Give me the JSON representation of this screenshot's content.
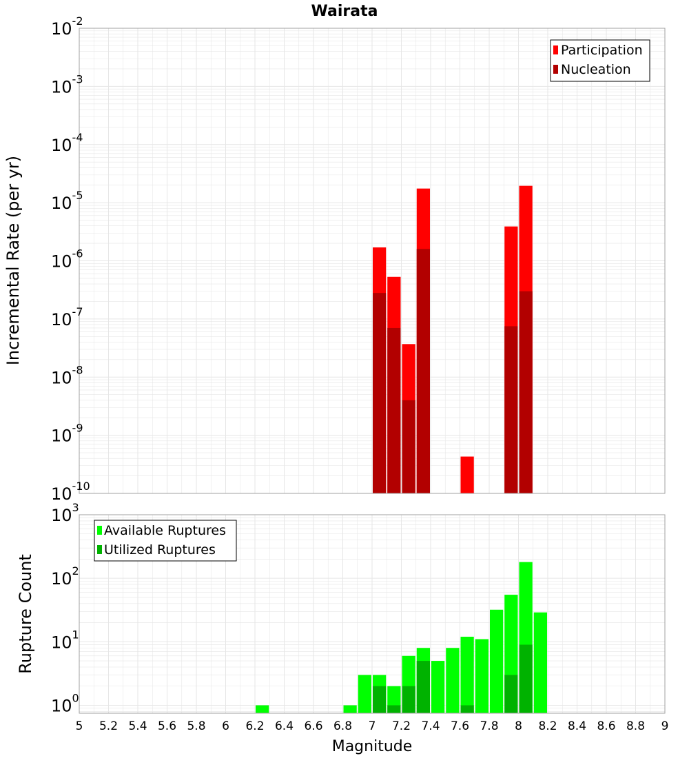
{
  "title": "Wairata",
  "xlabel": "Magnitude",
  "x_ticks": [
    "5",
    "5.2",
    "5.4",
    "5.6",
    "5.8",
    "6",
    "6.2",
    "6.4",
    "6.6",
    "6.8",
    "7",
    "7.2",
    "7.4",
    "7.6",
    "7.8",
    "8",
    "8.2",
    "8.4",
    "8.6",
    "8.8",
    "9"
  ],
  "colors": {
    "participation": "#ff0000",
    "nucleation": "#b20000",
    "available": "#00ff00",
    "utilized": "#00b200",
    "grid": "#e6e6e6",
    "frame": "#a0a0a0"
  },
  "chart_data": [
    {
      "type": "bar",
      "title": "Wairata",
      "xlabel": "Magnitude",
      "ylabel": "Incremental Rate (per yr)",
      "xlim": [
        5,
        9
      ],
      "ylim": [
        1e-10,
        0.01
      ],
      "yscale": "log",
      "grid": true,
      "legend": "top-right",
      "y_ticks": [
        {
          "base": "10",
          "exp": "-10"
        },
        {
          "base": "10",
          "exp": "-9"
        },
        {
          "base": "10",
          "exp": "-8"
        },
        {
          "base": "10",
          "exp": "-7"
        },
        {
          "base": "10",
          "exp": "-6"
        },
        {
          "base": "10",
          "exp": "-5"
        },
        {
          "base": "10",
          "exp": "-4"
        },
        {
          "base": "10",
          "exp": "-3"
        },
        {
          "base": "10",
          "exp": "-2"
        }
      ],
      "x": [
        7.05,
        7.15,
        7.25,
        7.35,
        7.65,
        7.95,
        8.05
      ],
      "series": [
        {
          "name": "Participation",
          "values": [
            1.7e-06,
            5.3e-07,
            3.7e-08,
            1.75e-05,
            4.3e-10,
            3.9e-06,
            1.95e-05
          ]
        },
        {
          "name": "Nucleation",
          "values": [
            2.8e-07,
            7e-08,
            4e-09,
            1.6e-06,
            null,
            7.5e-08,
            3e-07
          ]
        }
      ]
    },
    {
      "type": "bar",
      "xlabel": "Magnitude",
      "ylabel": "Rupture Count",
      "xlim": [
        5,
        9
      ],
      "ylim": [
        0.75,
        1000
      ],
      "yscale": "log",
      "grid": true,
      "legend": "top-left",
      "y_ticks": [
        {
          "base": "10",
          "exp": "0",
          "value": 1
        },
        {
          "base": "10",
          "exp": "1",
          "value": 10
        },
        {
          "base": "10",
          "exp": "2",
          "value": 100
        },
        {
          "base": "10",
          "exp": "3",
          "value": 1000
        }
      ],
      "x": [
        6.25,
        6.85,
        6.95,
        7.05,
        7.15,
        7.25,
        7.35,
        7.45,
        7.55,
        7.65,
        7.75,
        7.85,
        7.95,
        8.05,
        8.15
      ],
      "series": [
        {
          "name": "Available Ruptures",
          "values": [
            1,
            1,
            3,
            3,
            2,
            6,
            8,
            5,
            8,
            12,
            11,
            32,
            55,
            180,
            29
          ]
        },
        {
          "name": "Utilized Ruptures",
          "values": [
            null,
            null,
            null,
            2,
            1,
            2,
            5,
            null,
            null,
            1,
            null,
            null,
            3,
            9,
            null
          ]
        }
      ]
    }
  ]
}
